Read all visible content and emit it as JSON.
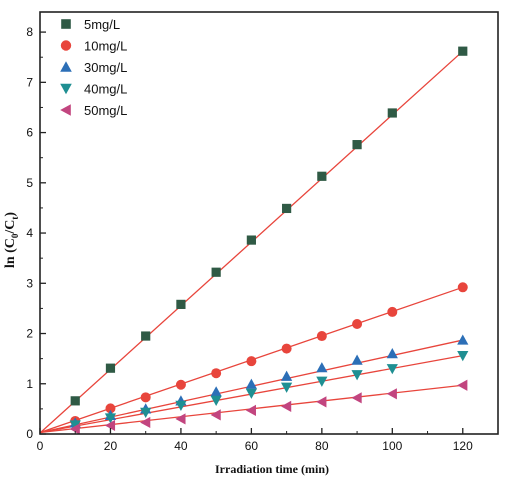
{
  "chart_data": {
    "type": "scatter",
    "xlabel": "Irradiation time (min)",
    "ylabel_main": "ln (C",
    "ylabel_sub0": "0",
    "ylabel_mid": "/C",
    "ylabel_sub1": "t",
    "ylabel_end": ")",
    "xlim": [
      0,
      130
    ],
    "ylim": [
      0,
      8.4
    ],
    "x_ticks": [
      "0",
      "20",
      "40",
      "60",
      "80",
      "100",
      "120"
    ],
    "y_ticks": [
      "0",
      "1",
      "2",
      "3",
      "4",
      "5",
      "6",
      "7",
      "8"
    ],
    "legend_position": "top-left",
    "fit_line_color": "#e8453c",
    "series": [
      {
        "name": "5mg/L",
        "marker": "square",
        "color": "#2f5a45",
        "x": [
          10,
          20,
          30,
          40,
          50,
          60,
          70,
          80,
          90,
          100,
          120
        ],
        "y": [
          0.66,
          1.31,
          1.95,
          2.58,
          3.22,
          3.86,
          4.49,
          5.13,
          5.76,
          6.39,
          7.62
        ],
        "fit": [
          0.02,
          7.62
        ]
      },
      {
        "name": "10mg/L",
        "marker": "circle",
        "color": "#e8453c",
        "x": [
          10,
          20,
          30,
          40,
          50,
          60,
          70,
          80,
          90,
          100,
          120
        ],
        "y": [
          0.26,
          0.51,
          0.73,
          0.98,
          1.21,
          1.45,
          1.7,
          1.95,
          2.19,
          2.43,
          2.92
        ],
        "fit": [
          0.03,
          2.92
        ]
      },
      {
        "name": "30mg/L",
        "marker": "triangle-up",
        "color": "#2c6fb7",
        "x": [
          10,
          20,
          30,
          40,
          50,
          60,
          70,
          80,
          90,
          100,
          120
        ],
        "y": [
          0.22,
          0.37,
          0.5,
          0.66,
          0.84,
          0.99,
          1.15,
          1.32,
          1.47,
          1.6,
          1.87
        ],
        "fit": [
          0.03,
          1.87
        ]
      },
      {
        "name": "40mg/L",
        "marker": "triangle-down",
        "color": "#1f8f92",
        "x": [
          10,
          20,
          30,
          40,
          50,
          60,
          70,
          80,
          90,
          100,
          120
        ],
        "y": [
          0.18,
          0.32,
          0.43,
          0.57,
          0.67,
          0.81,
          0.93,
          1.05,
          1.18,
          1.3,
          1.56
        ],
        "fit": [
          0.03,
          1.56
        ]
      },
      {
        "name": "50mg/L",
        "marker": "triangle-left",
        "color": "#c2457f",
        "x": [
          10,
          20,
          30,
          40,
          50,
          60,
          70,
          80,
          90,
          100,
          120
        ],
        "y": [
          0.1,
          0.17,
          0.23,
          0.3,
          0.38,
          0.47,
          0.55,
          0.64,
          0.72,
          0.8,
          0.97
        ],
        "fit": [
          0.03,
          0.97
        ]
      }
    ]
  }
}
